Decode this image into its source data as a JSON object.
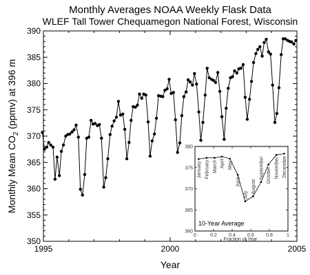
{
  "chart_data": [
    {
      "type": "line",
      "title": "Monthly Averages NOAA Weekly Flask Data",
      "subtitle": "WLEF Tall Tower Chequamegon National Forest, Wisconsin",
      "xlabel": "Year",
      "ylabel_main": "Monthly Mean CO",
      "ylabel_sub": "2",
      "ylabel_rest": " (ppmv) at 396 m",
      "xlim": [
        1995,
        2005
      ],
      "ylim": [
        350,
        390
      ],
      "xticks": [
        1995,
        2000,
        2005
      ],
      "yticks": [
        350,
        355,
        360,
        365,
        370,
        375,
        380,
        385,
        390
      ],
      "grid": false,
      "series": [
        {
          "x": [
            1994.96,
            1995.04,
            1995.13,
            1995.21,
            1995.29,
            1995.38,
            1995.46,
            1995.54,
            1995.63,
            1995.71,
            1995.79,
            1995.88,
            1995.96,
            1996.04,
            1996.13,
            1996.21,
            1996.29,
            1996.38,
            1996.46,
            1996.54,
            1996.63,
            1996.71,
            1996.79,
            1996.88,
            1996.96,
            1997.04,
            1997.13,
            1997.21,
            1997.29,
            1997.38,
            1997.46,
            1997.54,
            1997.63,
            1997.71,
            1997.79,
            1997.88,
            1997.96,
            1998.04,
            1998.13,
            1998.21,
            1998.29,
            1998.38,
            1998.46,
            1998.54,
            1998.63,
            1998.71,
            1998.79,
            1998.88,
            1998.96,
            1999.04,
            1999.13,
            1999.21,
            1999.29,
            1999.38,
            1999.46,
            1999.54,
            1999.63,
            1999.71,
            1999.79,
            1999.88,
            1999.96,
            2000.04,
            2000.13,
            2000.21,
            2000.29,
            2000.38,
            2000.46,
            2000.54,
            2000.63,
            2000.71,
            2000.79,
            2000.88,
            2000.96,
            2001.04,
            2001.13,
            2001.21,
            2001.29,
            2001.38,
            2001.46,
            2001.54,
            2001.63,
            2001.71,
            2001.79,
            2001.88,
            2001.96,
            2002.04,
            2002.13,
            2002.21,
            2002.29,
            2002.38,
            2002.46,
            2002.54,
            2002.63,
            2002.71,
            2002.79,
            2002.88,
            2002.96,
            2003.04,
            2003.13,
            2003.21,
            2003.29,
            2003.38,
            2003.46,
            2003.54,
            2003.63,
            2003.71,
            2003.79,
            2003.88,
            2003.96,
            2004.04,
            2004.13,
            2004.21,
            2004.29,
            2004.38,
            2004.46,
            2004.54,
            2004.63,
            2004.71,
            2004.79,
            2004.88,
            2004.96
          ],
          "y": [
            370.7,
            367.5,
            367.9,
            368.8,
            368.3,
            367.9,
            361.8,
            366.0,
            362.5,
            367.1,
            368.3,
            370.0,
            370.3,
            370.4,
            370.8,
            371.2,
            372.1,
            369.8,
            359.9,
            358.8,
            362.7,
            369.6,
            369.8,
            373.0,
            372.3,
            372.4,
            372.0,
            372.2,
            369.6,
            360.3,
            362.1,
            365.7,
            370.3,
            371.9,
            372.9,
            373.6,
            376.6,
            374.0,
            374.2,
            371.3,
            365.7,
            368.8,
            373.0,
            375.6,
            375.5,
            375.9,
            378.0,
            377.2,
            378.0,
            377.8,
            372.7,
            366.2,
            369.1,
            370.4,
            373.4,
            377.7,
            377.6,
            377.5,
            378.7,
            379.0,
            380.8,
            378.1,
            378.3,
            373.1,
            366.9,
            368.7,
            373.9,
            377.5,
            378.4,
            380.7,
            380.3,
            379.7,
            381.9,
            379.9,
            374.6,
            369.2,
            372.6,
            377.8,
            382.9,
            381.1,
            380.8,
            380.6,
            380.2,
            382.1,
            378.5,
            373.7,
            369.4,
            375.3,
            379.1,
            381.1,
            381.3,
            382.4,
            382.0,
            382.8,
            382.9,
            383.6,
            377.4,
            373.2,
            377.0,
            380.4,
            384.0,
            385.7,
            386.5,
            387.0,
            385.2,
            387.8,
            388.4,
            386.0,
            385.6,
            379.7,
            372.6,
            374.3,
            379.2,
            385.5,
            388.5,
            388.5,
            388.2,
            388.0,
            387.9,
            387.5,
            388.2
          ]
        }
      ]
    },
    {
      "type": "line",
      "title": "",
      "xlabel": "Fraction of Year",
      "ylabel": "",
      "annotation": "10-Year Average",
      "xlim": [
        0,
        1
      ],
      "ylim": [
        360,
        380
      ],
      "xticks": [
        "0",
        "0.2",
        "0.4",
        "0.6",
        "0.8",
        "1"
      ],
      "yticks": [
        "360",
        "365",
        "370",
        "375",
        "380"
      ],
      "months": [
        "January",
        "February",
        "March",
        "April",
        "May",
        "June",
        "July",
        "August",
        "September",
        "October",
        "November",
        "December"
      ],
      "series": [
        {
          "x": [
            0.04,
            0.125,
            0.21,
            0.29,
            0.375,
            0.46,
            0.54,
            0.625,
            0.71,
            0.79,
            0.875,
            0.96
          ],
          "y": [
            377.0,
            377.3,
            377.3,
            377.6,
            377.1,
            373.3,
            367.0,
            368.2,
            371.6,
            375.7,
            378.0,
            378.3
          ]
        }
      ]
    }
  ]
}
